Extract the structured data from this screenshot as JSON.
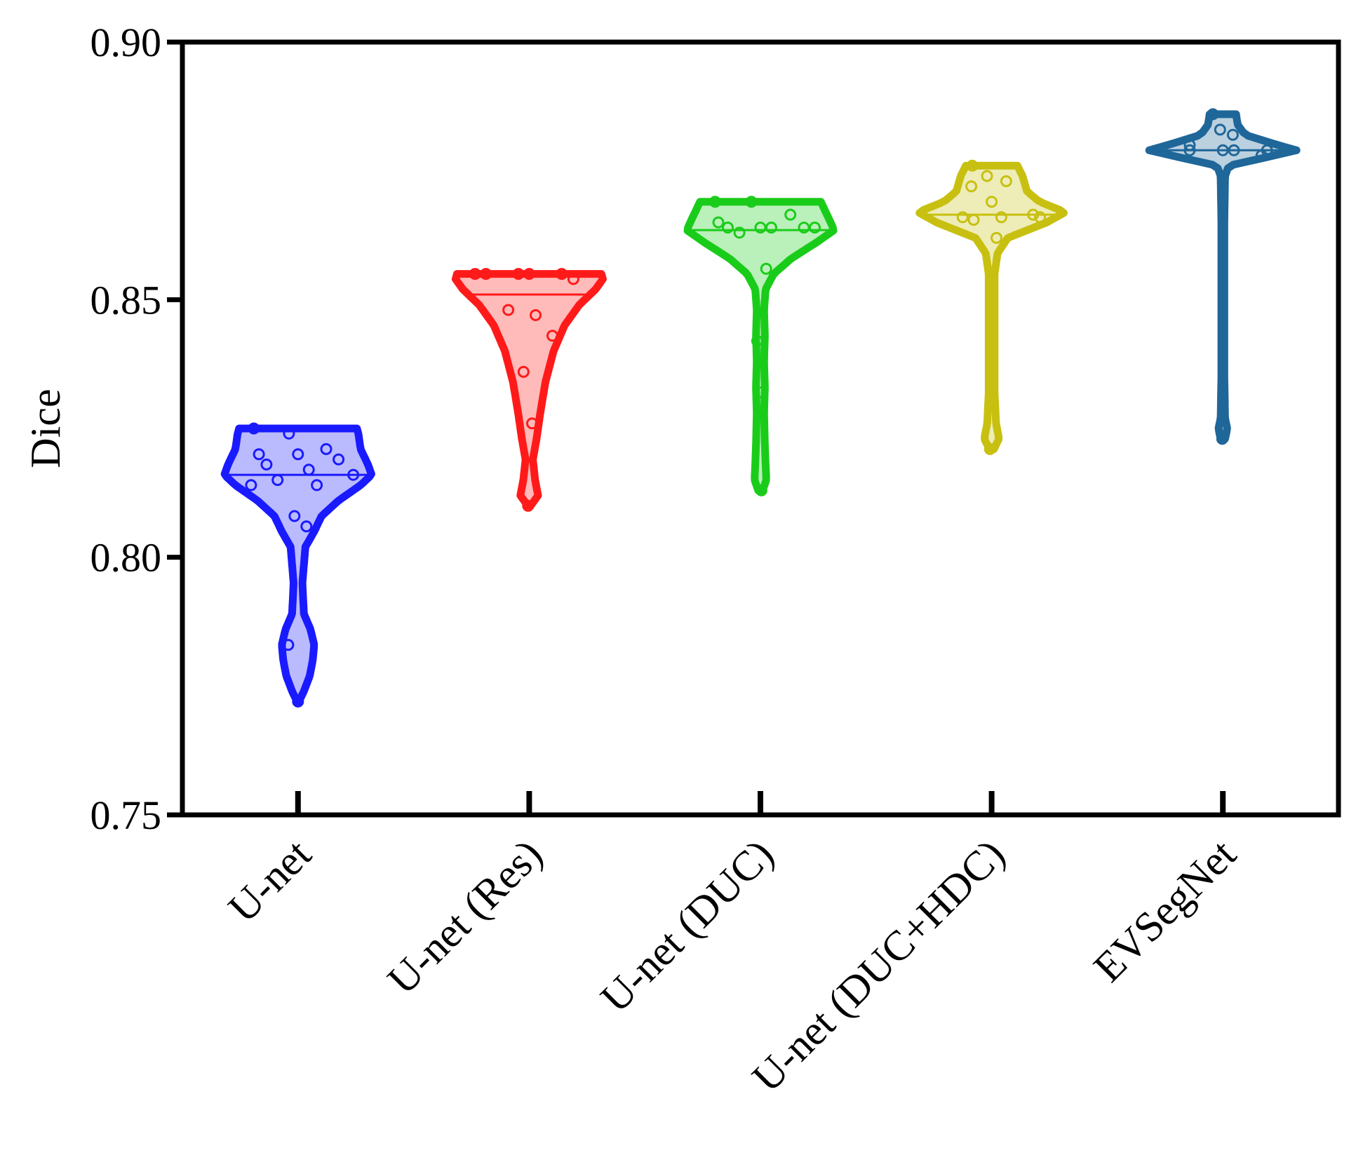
{
  "chart_data": {
    "type": "violin",
    "title": "",
    "xlabel": "",
    "ylabel": "Dice",
    "ylim": [
      0.75,
      0.9
    ],
    "yticks": [
      "0.75",
      "0.80",
      "0.85",
      "0.90"
    ],
    "grid": false,
    "legend": "none",
    "categories": [
      "U-net",
      "U-net (Res)",
      "U-net (DUC)",
      "U-net (DUC+HDC)",
      "EVSegNet"
    ],
    "series": [
      {
        "color": "#1a1aff",
        "min": 0.772,
        "max": 0.825,
        "median": 0.816,
        "points": [
          0.825,
          0.824,
          0.821,
          0.82,
          0.82,
          0.819,
          0.818,
          0.817,
          0.816,
          0.815,
          0.814,
          0.814,
          0.808,
          0.806,
          0.783,
          0.772
        ],
        "density": [
          [
            0.772,
            0.012
          ],
          [
            0.774,
            0.08
          ],
          [
            0.777,
            0.16
          ],
          [
            0.78,
            0.2
          ],
          [
            0.783,
            0.22
          ],
          [
            0.786,
            0.17
          ],
          [
            0.789,
            0.08
          ],
          [
            0.795,
            0.06
          ],
          [
            0.802,
            0.1
          ],
          [
            0.805,
            0.22
          ],
          [
            0.808,
            0.32
          ],
          [
            0.811,
            0.55
          ],
          [
            0.814,
            0.85
          ],
          [
            0.816,
            1.0
          ],
          [
            0.818,
            0.95
          ],
          [
            0.821,
            0.85
          ],
          [
            0.824,
            0.82
          ],
          [
            0.825,
            0.8
          ]
        ]
      },
      {
        "color": "#ff1a1a",
        "min": 0.81,
        "max": 0.855,
        "median": 0.851,
        "points": [
          0.855,
          0.855,
          0.855,
          0.855,
          0.855,
          0.854,
          0.848,
          0.847,
          0.843,
          0.836,
          0.826,
          0.81
        ],
        "density": [
          [
            0.81,
            0.02
          ],
          [
            0.812,
            0.12
          ],
          [
            0.815,
            0.08
          ],
          [
            0.819,
            0.05
          ],
          [
            0.823,
            0.1
          ],
          [
            0.828,
            0.15
          ],
          [
            0.834,
            0.22
          ],
          [
            0.84,
            0.33
          ],
          [
            0.845,
            0.48
          ],
          [
            0.849,
            0.68
          ],
          [
            0.852,
            0.9
          ],
          [
            0.854,
            1.0
          ],
          [
            0.855,
            0.98
          ]
        ]
      },
      {
        "color": "#1acc1a",
        "min": 0.813,
        "max": 0.869,
        "median": 0.8635,
        "points": [
          0.869,
          0.869,
          0.8665,
          0.865,
          0.864,
          0.864,
          0.864,
          0.864,
          0.864,
          0.863,
          0.856,
          0.842,
          0.832,
          0.813
        ],
        "density": [
          [
            0.813,
            0.03
          ],
          [
            0.815,
            0.08
          ],
          [
            0.818,
            0.07
          ],
          [
            0.822,
            0.06
          ],
          [
            0.828,
            0.05
          ],
          [
            0.833,
            0.06
          ],
          [
            0.838,
            0.05
          ],
          [
            0.843,
            0.06
          ],
          [
            0.848,
            0.05
          ],
          [
            0.852,
            0.07
          ],
          [
            0.855,
            0.18
          ],
          [
            0.858,
            0.42
          ],
          [
            0.861,
            0.75
          ],
          [
            0.8635,
            1.0
          ],
          [
            0.866,
            0.92
          ],
          [
            0.869,
            0.82
          ]
        ]
      },
      {
        "color": "#c8c010",
        "min": 0.821,
        "max": 0.876,
        "median": 0.8665,
        "points": [
          0.876,
          0.874,
          0.873,
          0.872,
          0.869,
          0.8665,
          0.866,
          0.866,
          0.866,
          0.8655,
          0.862,
          0.821
        ],
        "density": [
          [
            0.821,
            0.03
          ],
          [
            0.823,
            0.1
          ],
          [
            0.826,
            0.06
          ],
          [
            0.832,
            0.04
          ],
          [
            0.84,
            0.04
          ],
          [
            0.848,
            0.04
          ],
          [
            0.855,
            0.04
          ],
          [
            0.859,
            0.08
          ],
          [
            0.862,
            0.22
          ],
          [
            0.865,
            0.75
          ],
          [
            0.867,
            1.0
          ],
          [
            0.869,
            0.65
          ],
          [
            0.871,
            0.48
          ],
          [
            0.874,
            0.42
          ],
          [
            0.876,
            0.35
          ]
        ]
      },
      {
        "color": "#1f6699",
        "min": 0.823,
        "max": 0.886,
        "median": 0.879,
        "points": [
          0.886,
          0.883,
          0.882,
          0.88,
          0.879,
          0.879,
          0.879,
          0.879,
          0.878,
          0.823
        ],
        "density": [
          [
            0.823,
            0.03
          ],
          [
            0.825,
            0.06
          ],
          [
            0.827,
            0.03
          ],
          [
            0.835,
            0.02
          ],
          [
            0.85,
            0.02
          ],
          [
            0.865,
            0.02
          ],
          [
            0.874,
            0.03
          ],
          [
            0.876,
            0.08
          ],
          [
            0.878,
            0.7
          ],
          [
            0.879,
            1.0
          ],
          [
            0.88,
            0.75
          ],
          [
            0.882,
            0.3
          ],
          [
            0.884,
            0.2
          ],
          [
            0.886,
            0.18
          ]
        ]
      }
    ]
  }
}
